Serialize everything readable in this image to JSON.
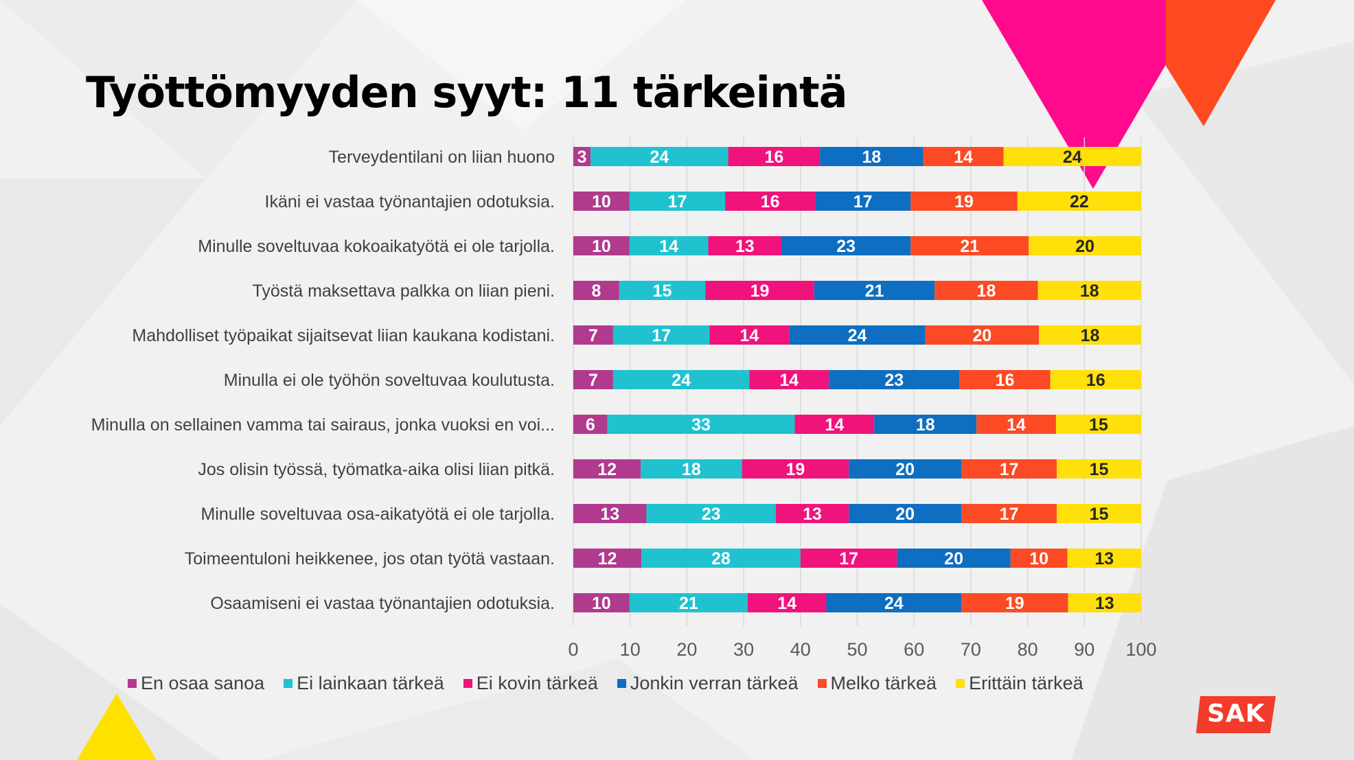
{
  "colors": {
    "en_osaa_sanoa": "#b03a8e",
    "ei_lainkaan": "#20c2cf",
    "ei_kovin": "#f0137b",
    "jonkin_verran": "#0e6ec1",
    "melko": "#fb4a24",
    "erittain": "#ffe00a",
    "accent_magenta": "#ff0a8c",
    "accent_orange": "#ff4a21",
    "accent_yellow": "#ffe100",
    "logo_red": "#f23b2a"
  },
  "logo": {
    "text": "SAK"
  },
  "chart_data": {
    "type": "bar",
    "orientation": "horizontal-stacked-100",
    "title": "Työttömyyden syyt: 11 tärkeintä",
    "categories": [
      "Terveydentilani on liian huono",
      "Ikäni ei vastaa työnantajien odotuksia.",
      "Minulle soveltuvaa kokoaikatyötä ei ole tarjolla.",
      "Työstä maksettava palkka on liian pieni.",
      "Mahdolliset työpaikat sijaitsevat liian kaukana kodistani.",
      "Minulla ei ole työhön soveltuvaa koulutusta.",
      "Minulla on sellainen vamma tai sairaus, jonka vuoksi en voi...",
      "Jos olisin työssä, työmatka-aika olisi liian pitkä.",
      "Minulle soveltuvaa osa-aikatyötä ei ole tarjolla.",
      "Toimeentuloni heikkenee, jos otan työtä vastaan.",
      "Osaamiseni ei vastaa työnantajien odotuksia."
    ],
    "series": [
      {
        "name": "En osaa sanoa",
        "color_key": "en_osaa_sanoa",
        "label_color": "#ffffff",
        "values": [
          3,
          10,
          10,
          8,
          7,
          7,
          6,
          12,
          13,
          12,
          10
        ]
      },
      {
        "name": "Ei lainkaan tärkeä",
        "color_key": "ei_lainkaan",
        "label_color": "#ffffff",
        "values": [
          24,
          17,
          14,
          15,
          17,
          24,
          33,
          18,
          23,
          28,
          21
        ]
      },
      {
        "name": "Ei kovin tärkeä",
        "color_key": "ei_kovin",
        "label_color": "#ffffff",
        "values": [
          16,
          16,
          13,
          19,
          14,
          14,
          14,
          19,
          13,
          17,
          14
        ]
      },
      {
        "name": "Jonkin verran tärkeä",
        "color_key": "jonkin_verran",
        "label_color": "#ffffff",
        "values": [
          18,
          17,
          23,
          21,
          24,
          23,
          18,
          20,
          20,
          20,
          24
        ]
      },
      {
        "name": "Melko tärkeä",
        "color_key": "melko",
        "label_color": "#ffffff",
        "values": [
          14,
          19,
          21,
          18,
          20,
          16,
          14,
          17,
          17,
          10,
          19
        ]
      },
      {
        "name": "Erittäin tärkeä",
        "color_key": "erittain",
        "label_color": "#262626",
        "values": [
          24,
          22,
          20,
          18,
          18,
          16,
          15,
          15,
          15,
          13,
          13
        ]
      }
    ],
    "xlim": [
      0,
      100
    ],
    "xticks": [
      "0",
      "10",
      "20",
      "30",
      "40",
      "50",
      "60",
      "70",
      "80",
      "90",
      "100"
    ],
    "grid": true,
    "legend_position": "bottom"
  }
}
